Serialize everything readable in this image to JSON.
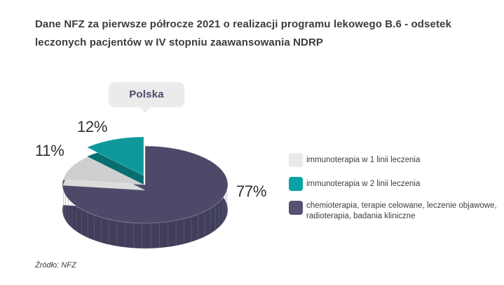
{
  "page": {
    "title": "Dane NFZ za pierwsze półrocze 2021 o realizacji programu lekowego B.6 - odsetek leczonych pacjentów w IV stopniu zaawansowania NDRP",
    "source_note": "Źródło: NFZ"
  },
  "chart_data": {
    "type": "pie",
    "style": "3d-exploded",
    "title": "Dane NFZ za pierwsze półrocze 2021 o realizacji programu lekowego B.6 - odsetek leczonych pacjentów w IV stopniu zaawansowania NDRP",
    "region_label": "Polska",
    "unit": "%",
    "legend_position": "right",
    "series": [
      {
        "name": "immunoterapia w 1 linii leczenia",
        "value": 11,
        "pct_label": "11%",
        "legend_color": "#e8e9e9",
        "pie_top": "#ced0cf",
        "pie_side": "#dadcdb"
      },
      {
        "name": "immunoterapia w 2 linii leczenia",
        "value": 12,
        "pct_label": "12%",
        "legend_color": "#0aa2a6",
        "pie_top": "#0e989c",
        "pie_side": "#076f72"
      },
      {
        "name": "chemioterapia, terapie celowane, leczenie objawowe, radioterapia, badania kliniczne",
        "value": 77,
        "pct_label": "77%",
        "legend_color": "#565273",
        "pie_top": "#4c4a68",
        "pie_side": "#403e5a"
      }
    ]
  }
}
